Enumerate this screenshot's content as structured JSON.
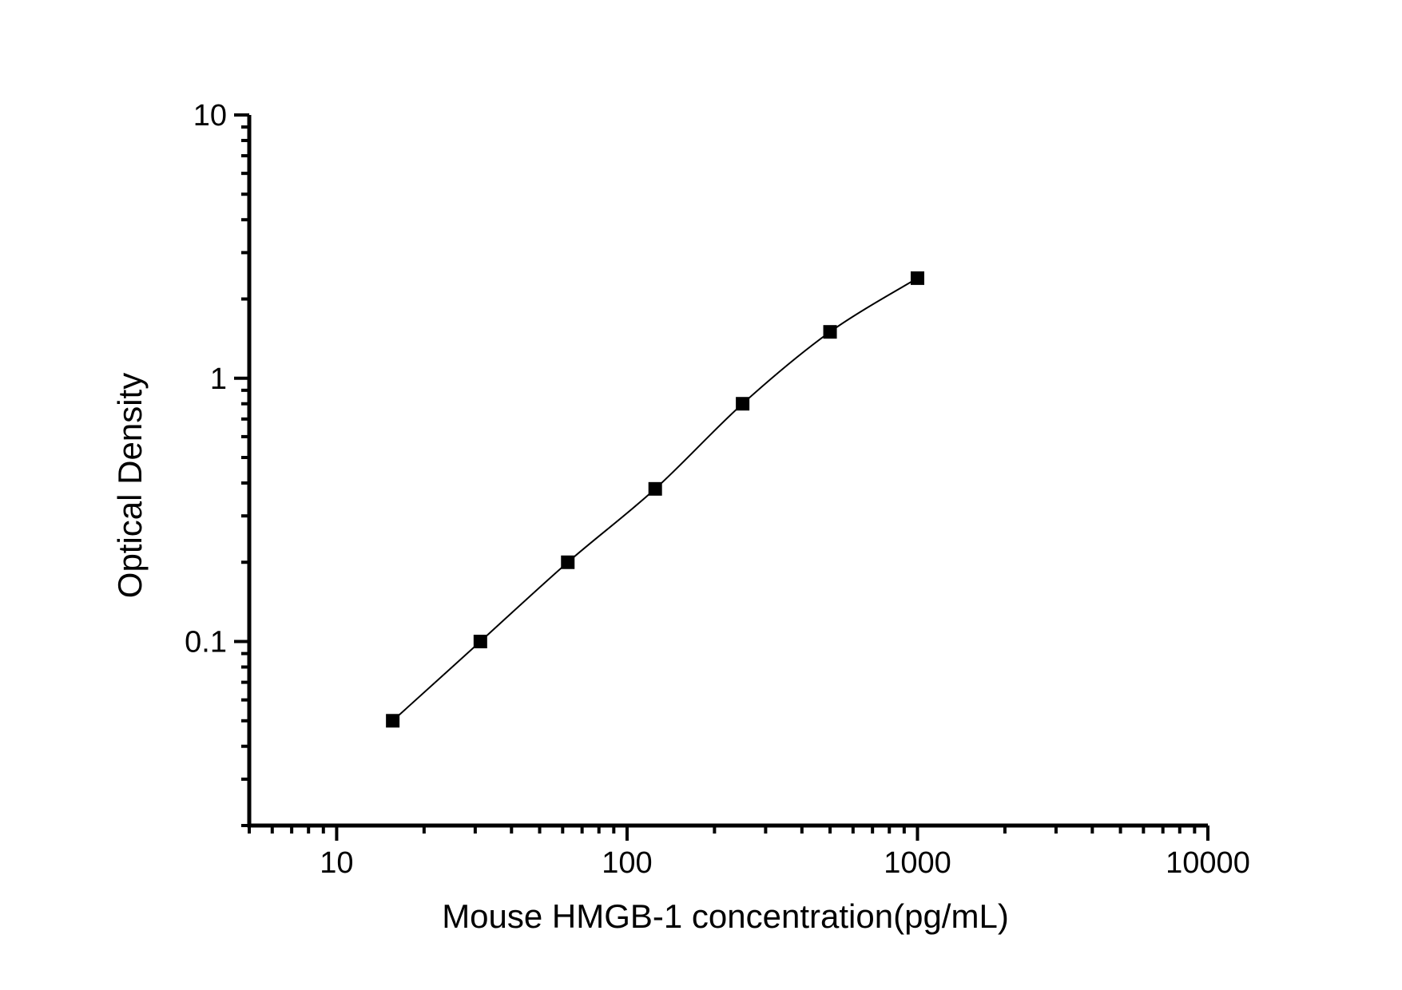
{
  "chart_data": {
    "type": "line",
    "title": "",
    "xlabel": "Mouse HMGB-1 concentration(pg/mL)",
    "ylabel": "Optical Density",
    "xscale": "log",
    "yscale": "log",
    "xlim": [
      5,
      10000
    ],
    "ylim": [
      0.02,
      10
    ],
    "grid": false,
    "legend_position": "none",
    "x_major_ticks": [
      10,
      100,
      1000,
      10000
    ],
    "x_major_tick_labels": [
      "10",
      "100",
      "1000",
      "10000"
    ],
    "y_major_ticks": [
      10,
      1,
      0.1
    ],
    "y_major_tick_labels": [
      "10",
      "1",
      "0.1"
    ],
    "series": [
      {
        "name": "standard-curve",
        "marker": "filled-square",
        "line_style": "solid",
        "color": "#000000",
        "x": [
          15.6,
          31.25,
          62.5,
          125,
          250,
          500,
          1000
        ],
        "y": [
          0.05,
          0.1,
          0.2,
          0.38,
          0.8,
          1.5,
          2.4
        ]
      }
    ]
  },
  "colors": {
    "background": "#ffffff",
    "axis": "#000000",
    "text": "#000000"
  }
}
